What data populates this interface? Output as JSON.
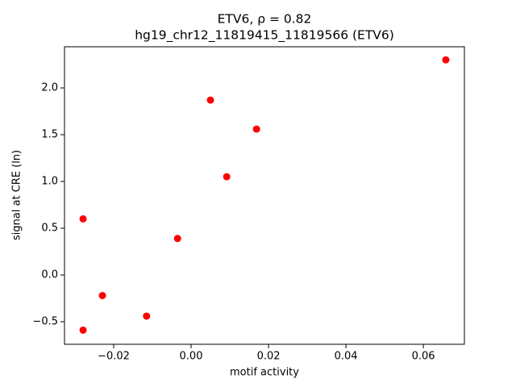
{
  "chart_data": {
    "type": "scatter",
    "title": "ETV6, ρ = 0.82",
    "subtitle": "hg19_chr12_11819415_11819566 (ETV6)",
    "x_label": "motif activity",
    "y_label": "signal at CRE (ln)",
    "color": "#ff0000",
    "x": [
      0.0658,
      0.005,
      0.0169,
      0.0092,
      -0.0279,
      -0.0035,
      -0.0229,
      -0.0115,
      -0.0279
    ],
    "values": [
      2.3,
      1.87,
      1.56,
      1.05,
      0.6,
      0.39,
      -0.22,
      -0.44,
      -0.59
    ],
    "xlim": [
      -0.0327,
      0.0706
    ],
    "ylim": [
      -0.741,
      2.44
    ],
    "xticks": [
      {
        "value": -0.02,
        "label": "−0.02"
      },
      {
        "value": 0,
        "label": "0.00"
      },
      {
        "value": 0.02,
        "label": "0.02"
      },
      {
        "value": 0.04,
        "label": "0.04"
      },
      {
        "value": 0.06,
        "label": "0.06"
      }
    ],
    "yticks": [
      {
        "value": -0.5,
        "label": "−0.5"
      },
      {
        "value": 0,
        "label": "0.0"
      },
      {
        "value": 0.5,
        "label": "0.5"
      },
      {
        "value": 1,
        "label": "1.0"
      },
      {
        "value": 1.5,
        "label": "1.5"
      },
      {
        "value": 2,
        "label": "2.0"
      }
    ],
    "grid": false
  }
}
